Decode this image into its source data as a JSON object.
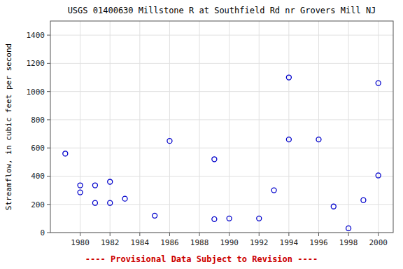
{
  "chart_data": {
    "type": "scatter",
    "title": "USGS 01400630 Millstone R at Southfield Rd nr Grovers Mill NJ",
    "ylabel": "Streamflow, in cubic feet per second",
    "annotations": [
      "---- Provisional Data Subject to Revision ----"
    ],
    "x": [
      1979,
      1980,
      1980,
      1981,
      1981,
      1982,
      1982,
      1983,
      1985,
      1986,
      1989,
      1989,
      1990,
      1992,
      1993,
      1994,
      1994,
      1996,
      1997,
      1998,
      1999,
      2000,
      2000
    ],
    "values": [
      560,
      335,
      285,
      335,
      210,
      360,
      210,
      240,
      120,
      650,
      95,
      520,
      100,
      100,
      300,
      1100,
      660,
      660,
      185,
      30,
      230,
      1060,
      405
    ],
    "color": "#0000cc",
    "marker": "circle",
    "xlim": [
      1978,
      2001
    ],
    "ylim": [
      0,
      1500
    ],
    "xticks": [
      1980,
      1982,
      1984,
      1986,
      1988,
      1990,
      1992,
      1994,
      1996,
      1998,
      2000
    ],
    "yticks": [
      0,
      200,
      400,
      600,
      800,
      1000,
      1200,
      1400
    ],
    "grid": true
  }
}
